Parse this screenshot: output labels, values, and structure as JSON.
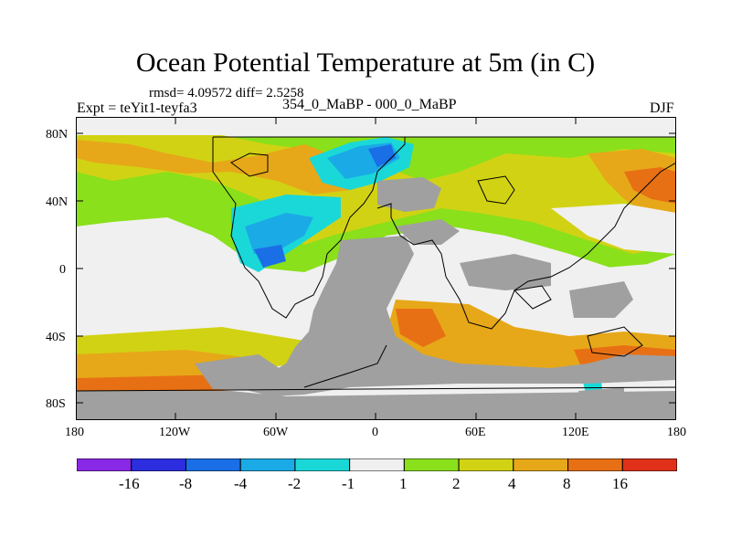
{
  "title": "Ocean Potential Temperature at 5m (in C)",
  "stats_line": "rmsd= 4.09572 diff= 2.5258",
  "subtitle": "354_0_MaBP - 000_0_MaBP",
  "experiment": "Expt = teYit1-teyfa3",
  "season": "DJF",
  "lat_ticks": [
    "80N",
    "40N",
    "0",
    "40S",
    "80S"
  ],
  "lon_ticks": [
    "180",
    "120W",
    "60W",
    "0",
    "60E",
    "120E",
    "180"
  ],
  "colorbar": {
    "colors": [
      "#8a28e8",
      "#2c2ee0",
      "#1a6ee6",
      "#1aaae6",
      "#1ad8d8",
      "#f0f0f0",
      "#8ae01a",
      "#d2d214",
      "#e6a818",
      "#e87014",
      "#e0301a"
    ],
    "labels": [
      "-16",
      "-8",
      "-4",
      "-2",
      "-1",
      "1",
      "2",
      "4",
      "8",
      "16"
    ]
  },
  "land_color": "#a0a0a0"
}
